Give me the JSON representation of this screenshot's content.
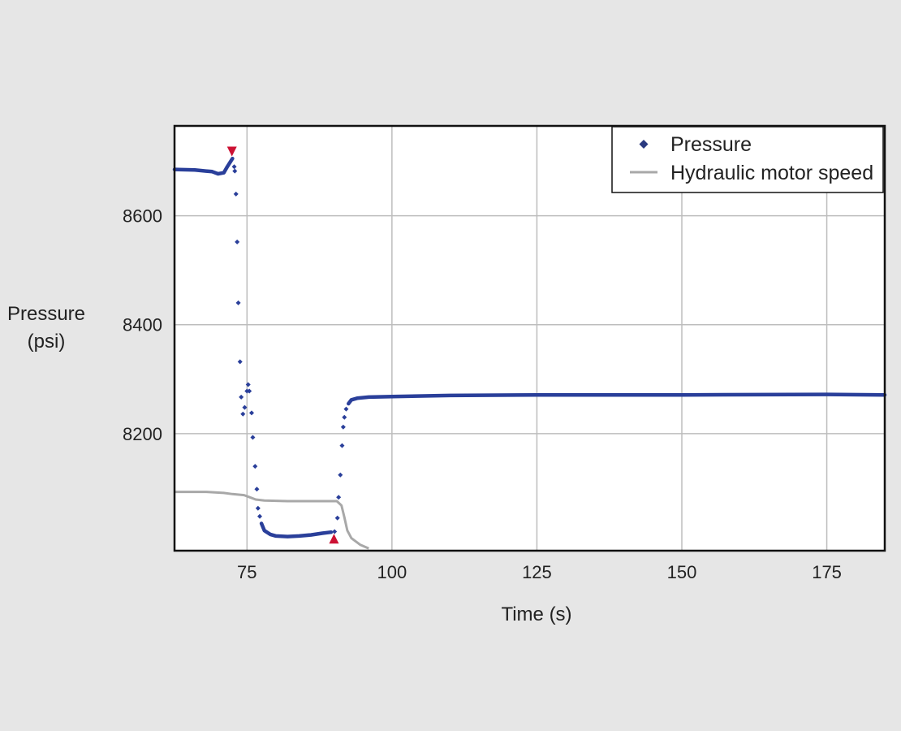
{
  "chart_data": {
    "type": "scatter",
    "xlabel": "Time (s)",
    "ylabel_line1": "Pressure",
    "ylabel_line2": "(psi)",
    "xlim": [
      62.5,
      185
    ],
    "ylim": [
      7985,
      8765
    ],
    "x_ticks": [
      75,
      100,
      125,
      150,
      175
    ],
    "y_ticks": [
      8200,
      8400,
      8600
    ],
    "grid": true,
    "legend_position": "top-right",
    "series": [
      {
        "name": "Pressure",
        "marker": "diamond",
        "color": "#2a3f9a",
        "dense_segments": [
          {
            "points": [
              [
                62.5,
                8685
              ],
              [
                66,
                8684
              ],
              [
                69,
                8681
              ],
              [
                70,
                8677
              ],
              [
                71,
                8679
              ],
              [
                71.6,
                8690
              ],
              [
                72.5,
                8705
              ]
            ]
          },
          {
            "points": [
              [
                77.5,
                8035
              ],
              [
                78,
                8022
              ],
              [
                79,
                8015
              ],
              [
                80,
                8012
              ],
              [
                82,
                8011
              ],
              [
                84,
                8012
              ],
              [
                86,
                8014
              ],
              [
                88,
                8017
              ],
              [
                89.5,
                8019
              ]
            ]
          },
          {
            "points": [
              [
                92.5,
                8255
              ],
              [
                93,
                8262
              ],
              [
                94,
                8265
              ],
              [
                96,
                8267
              ],
              [
                100,
                8268
              ],
              [
                110,
                8270
              ],
              [
                125,
                8271
              ],
              [
                150,
                8271
              ],
              [
                175,
                8272
              ],
              [
                185,
                8271
              ]
            ]
          }
        ],
        "sparse_points": [
          [
            72.8,
            8690
          ],
          [
            72.9,
            8682
          ],
          [
            73.1,
            8640
          ],
          [
            73.3,
            8552
          ],
          [
            73.5,
            8440
          ],
          [
            73.8,
            8332
          ],
          [
            74.0,
            8267
          ],
          [
            74.3,
            8236
          ],
          [
            74.6,
            8248
          ],
          [
            75.0,
            8278
          ],
          [
            75.2,
            8290
          ],
          [
            75.4,
            8278
          ],
          [
            75.8,
            8238
          ],
          [
            76.0,
            8193
          ],
          [
            76.4,
            8140
          ],
          [
            76.7,
            8098
          ],
          [
            76.9,
            8063
          ],
          [
            77.2,
            8048
          ],
          [
            90.1,
            8020
          ],
          [
            90.6,
            8045
          ],
          [
            90.8,
            8083
          ],
          [
            91.1,
            8124
          ],
          [
            91.4,
            8178
          ],
          [
            91.6,
            8212
          ],
          [
            91.8,
            8230
          ],
          [
            92.1,
            8245
          ]
        ]
      },
      {
        "name": "Hydraulic motor speed",
        "type": "line",
        "color": "#a8a8a8",
        "points": [
          [
            62.5,
            8093
          ],
          [
            68,
            8093
          ],
          [
            71,
            8091
          ],
          [
            72.5,
            8089
          ],
          [
            74.5,
            8087
          ],
          [
            75.5,
            8083
          ],
          [
            76.5,
            8079
          ],
          [
            78,
            8077
          ],
          [
            82,
            8076
          ],
          [
            88,
            8076
          ],
          [
            90.5,
            8076
          ],
          [
            91.3,
            8068
          ],
          [
            91.8,
            8046
          ],
          [
            92.3,
            8022
          ],
          [
            93,
            8008
          ],
          [
            94.5,
            7996
          ],
          [
            96,
            7989
          ]
        ]
      }
    ],
    "markers": [
      {
        "x": 72.4,
        "y": 8718,
        "shape": "triangle-down",
        "color": "#cc1133"
      },
      {
        "x": 90.0,
        "y": 8007,
        "shape": "triangle-up",
        "color": "#cc1133"
      }
    ]
  }
}
